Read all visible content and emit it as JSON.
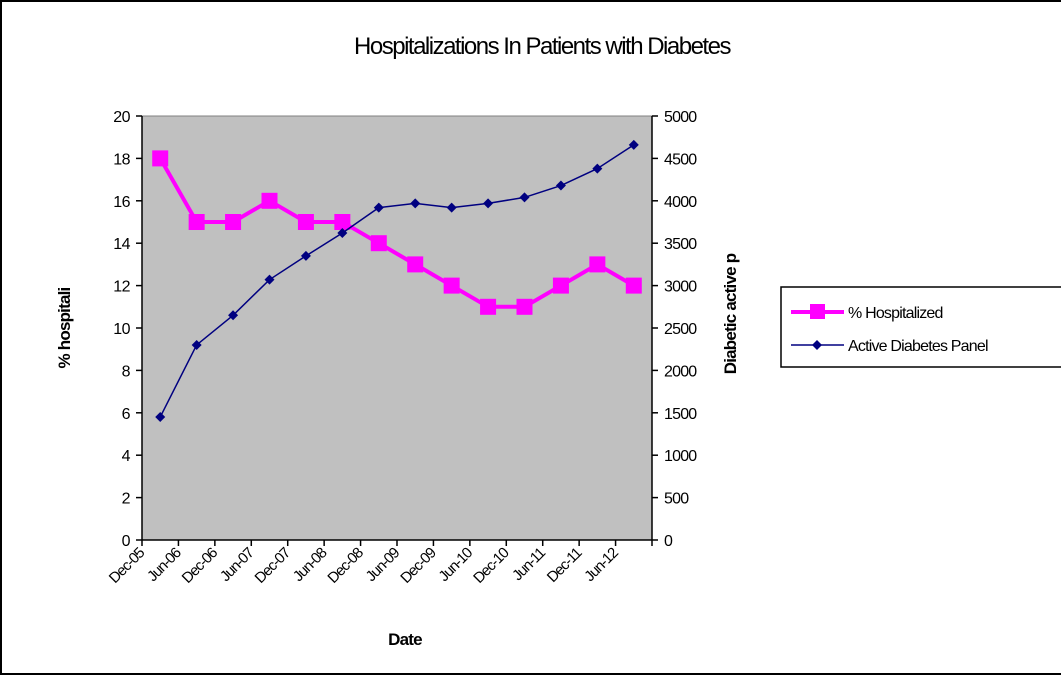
{
  "chart_data": {
    "type": "line",
    "title": "Hospitalizations In Patients with Diabetes",
    "xlabel": "Date",
    "ylabel": "% hospitali",
    "y2label": "Diabetic active p",
    "categories": [
      "Dec-05",
      "Jun-06",
      "Dec-06",
      "Jun-07",
      "Dec-07",
      "Jun-08",
      "Dec-08",
      "Jun-09",
      "Dec-09",
      "Jun-10",
      "Dec-10",
      "Jun-11",
      "Dec-11",
      "Jun-12"
    ],
    "ylim": [
      0,
      20
    ],
    "y_ticks": [
      "0",
      "2",
      "4",
      "6",
      "8",
      "10",
      "12",
      "14",
      "16",
      "18",
      "20"
    ],
    "y2lim": [
      0,
      5000
    ],
    "y2_ticks": [
      "0",
      "500",
      "1000",
      "1500",
      "2000",
      "2500",
      "3000",
      "3500",
      "4000",
      "4500",
      "5000"
    ],
    "series": [
      {
        "name": "% Hospitalized",
        "axis": "left",
        "color": "#ff00ff",
        "marker": "square",
        "values": [
          18,
          15,
          15,
          16,
          15,
          15,
          14,
          13,
          12,
          11,
          11,
          12,
          13,
          12
        ]
      },
      {
        "name": "Active Diabetes Panel",
        "axis": "right",
        "color": "#000080",
        "marker": "diamond",
        "values": [
          1450,
          2300,
          2650,
          3070,
          3350,
          3620,
          3920,
          3970,
          3920,
          3970,
          4040,
          4180,
          4380,
          4660
        ]
      }
    ],
    "plot_background": "#c0c0c0",
    "grid": false,
    "legend_position": "right"
  }
}
